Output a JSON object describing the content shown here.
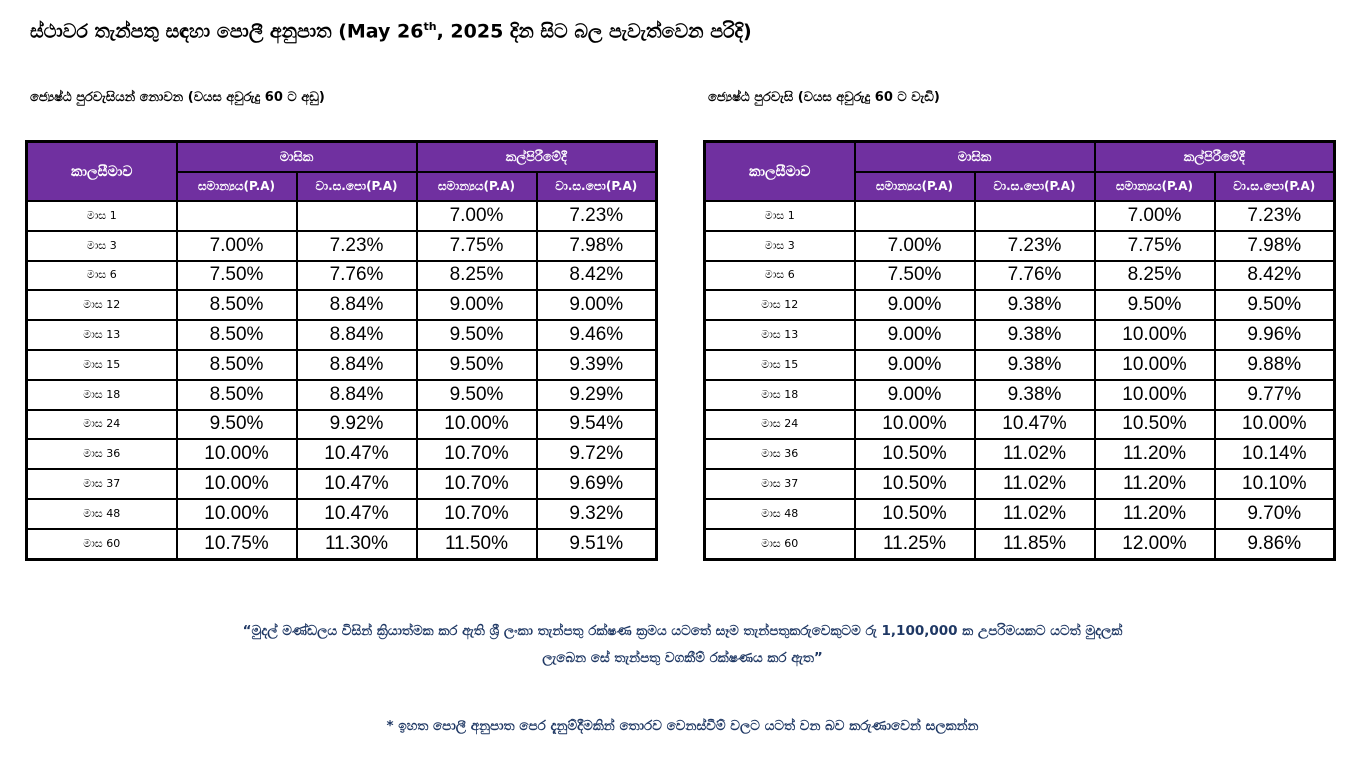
{
  "title": {
    "main": "ස්ථාවර තැන්පතු සඳහා පොලී අනුපාත (May 26",
    "sup": "th",
    "rest": ", 2025 දින සිට බල පැවැත්වෙන පරිදි)"
  },
  "headers": {
    "period": "කාලසීමාව",
    "monthly": "මාසික",
    "maturity": "කල්පිරීමේදී",
    "normal": "සමාන්‍යය(P.A)",
    "aer": "වා.ස.පො(P.A)"
  },
  "tables": [
    {
      "heading": "ජ්‍යෙෂ්ඨ පුරවැසියන් නොවන (වයස අවුරුදු 60 ට අඩු)",
      "rows": [
        {
          "term": "මාස 1",
          "m_normal": "",
          "m_aer": "",
          "t_normal": "7.00%",
          "t_aer": "7.23%"
        },
        {
          "term": "මාස 3",
          "m_normal": "7.00%",
          "m_aer": "7.23%",
          "t_normal": "7.75%",
          "t_aer": "7.98%"
        },
        {
          "term": "මාස 6",
          "m_normal": "7.50%",
          "m_aer": "7.76%",
          "t_normal": "8.25%",
          "t_aer": "8.42%"
        },
        {
          "term": "මාස 12",
          "m_normal": "8.50%",
          "m_aer": "8.84%",
          "t_normal": "9.00%",
          "t_aer": "9.00%"
        },
        {
          "term": "මාස 13",
          "m_normal": "8.50%",
          "m_aer": "8.84%",
          "t_normal": "9.50%",
          "t_aer": "9.46%"
        },
        {
          "term": "මාස 15",
          "m_normal": "8.50%",
          "m_aer": "8.84%",
          "t_normal": "9.50%",
          "t_aer": "9.39%"
        },
        {
          "term": "මාස 18",
          "m_normal": "8.50%",
          "m_aer": "8.84%",
          "t_normal": "9.50%",
          "t_aer": "9.29%"
        },
        {
          "term": "මාස 24",
          "m_normal": "9.50%",
          "m_aer": "9.92%",
          "t_normal": "10.00%",
          "t_aer": "9.54%"
        },
        {
          "term": "මාස 36",
          "m_normal": "10.00%",
          "m_aer": "10.47%",
          "t_normal": "10.70%",
          "t_aer": "9.72%"
        },
        {
          "term": "මාස 37",
          "m_normal": "10.00%",
          "m_aer": "10.47%",
          "t_normal": "10.70%",
          "t_aer": "9.69%"
        },
        {
          "term": "මාස 48",
          "m_normal": "10.00%",
          "m_aer": "10.47%",
          "t_normal": "10.70%",
          "t_aer": "9.32%"
        },
        {
          "term": "මාස 60",
          "m_normal": "10.75%",
          "m_aer": "11.30%",
          "t_normal": "11.50%",
          "t_aer": "9.51%"
        }
      ]
    },
    {
      "heading": "ජ්‍යෙෂ්ඨ පුරවැසි (වයස අවුරුදු 60 ට වැඩි)",
      "rows": [
        {
          "term": "මාස 1",
          "m_normal": "",
          "m_aer": "",
          "t_normal": "7.00%",
          "t_aer": "7.23%"
        },
        {
          "term": "මාස 3",
          "m_normal": "7.00%",
          "m_aer": "7.23%",
          "t_normal": "7.75%",
          "t_aer": "7.98%"
        },
        {
          "term": "මාස 6",
          "m_normal": "7.50%",
          "m_aer": "7.76%",
          "t_normal": "8.25%",
          "t_aer": "8.42%"
        },
        {
          "term": "මාස 12",
          "m_normal": "9.00%",
          "m_aer": "9.38%",
          "t_normal": "9.50%",
          "t_aer": "9.50%"
        },
        {
          "term": "මාස 13",
          "m_normal": "9.00%",
          "m_aer": "9.38%",
          "t_normal": "10.00%",
          "t_aer": "9.96%"
        },
        {
          "term": "මාස 15",
          "m_normal": "9.00%",
          "m_aer": "9.38%",
          "t_normal": "10.00%",
          "t_aer": "9.88%"
        },
        {
          "term": "මාස 18",
          "m_normal": "9.00%",
          "m_aer": "9.38%",
          "t_normal": "10.00%",
          "t_aer": "9.77%"
        },
        {
          "term": "මාස 24",
          "m_normal": "10.00%",
          "m_aer": "10.47%",
          "t_normal": "10.50%",
          "t_aer": "10.00%"
        },
        {
          "term": "මාස 36",
          "m_normal": "10.50%",
          "m_aer": "11.02%",
          "t_normal": "11.20%",
          "t_aer": "10.14%"
        },
        {
          "term": "මාස 37",
          "m_normal": "10.50%",
          "m_aer": "11.02%",
          "t_normal": "11.20%",
          "t_aer": "10.10%"
        },
        {
          "term": "මාස 48",
          "m_normal": "10.50%",
          "m_aer": "11.02%",
          "t_normal": "11.20%",
          "t_aer": "9.70%"
        },
        {
          "term": "මාස 60",
          "m_normal": "11.25%",
          "m_aer": "11.85%",
          "t_normal": "12.00%",
          "t_aer": "9.86%"
        }
      ]
    }
  ],
  "notes": {
    "line1": "“මුදල් මණ්ඩලය විසින් ක්‍රියාත්මක කර ඇති ශ්‍රී ලංකා තැන්පතු රක්ෂණ ක්‍රමය යටතේ සෑම තැන්පතුකරුවෙකුටම රු 1,100,000 ක උපරිමයකට යටත් මුදලක්",
    "line2": "ලැබෙන සේ තැන්පතු වගකීම් රක්ෂණය කර ඇත”",
    "line3": "* ඉහත පොලී අනුපාත පෙර දැනුම්දීමකින් තොරව වෙනස්වීම් වලට යටත් වන බව කරුණාවෙන් සලකන්න"
  },
  "colors": {
    "header_bg": "#7030a0",
    "header_text": "#ffffff",
    "note_text": "#1f3864"
  }
}
